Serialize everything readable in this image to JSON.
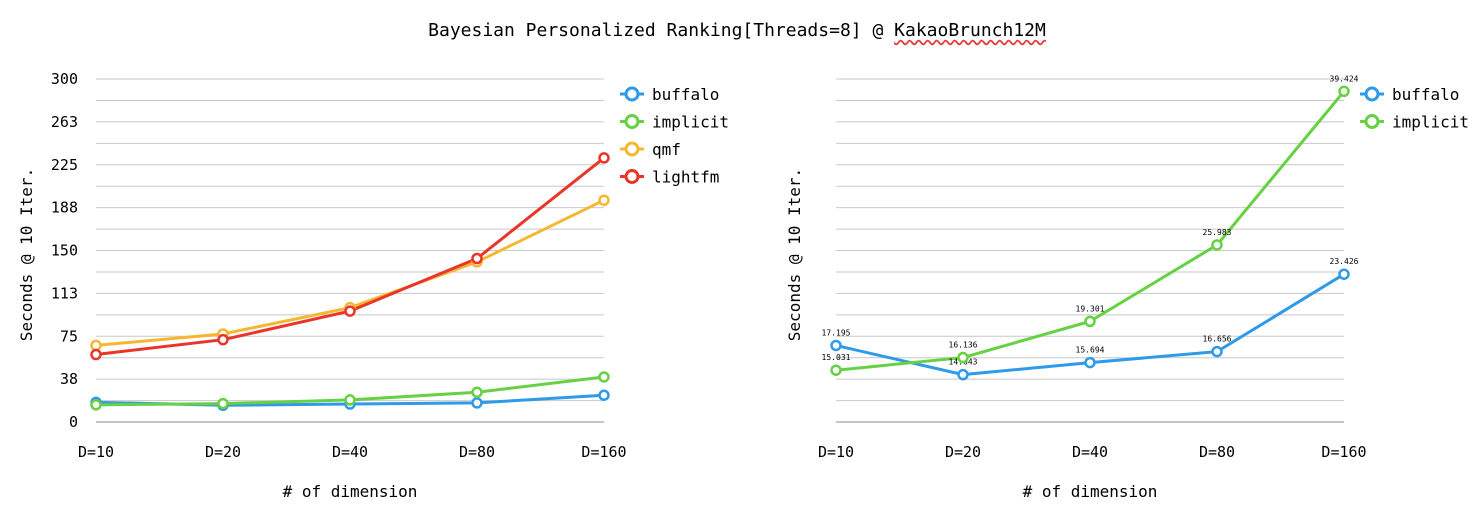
{
  "title_main": "Bayesian Personalized Ranking[Threads=8] @ ",
  "title_dataset": "KakaoBrunch12M",
  "chart_data": [
    {
      "type": "line",
      "title": "",
      "xlabel": "# of dimension",
      "ylabel": "Seconds @ 10 Iter.",
      "categories": [
        "D=10",
        "D=20",
        "D=40",
        "D=80",
        "D=160"
      ],
      "ylim": [
        0,
        300
      ],
      "yticks": [
        "0",
        "38",
        "75",
        "113",
        "150",
        "188",
        "225",
        "263",
        "300"
      ],
      "grid": true,
      "legend": "top-right",
      "series": [
        {
          "name": "buffalo",
          "color": "#2f9ae8",
          "values": [
            17.2,
            14.6,
            15.7,
            16.7,
            23.4
          ]
        },
        {
          "name": "implicit",
          "color": "#66d142",
          "values": [
            15.0,
            16.1,
            19.3,
            26.0,
            39.4
          ]
        },
        {
          "name": "qmf",
          "color": "#f5b731",
          "values": [
            67,
            77,
            100,
            140,
            194
          ]
        },
        {
          "name": "lightfm",
          "color": "#e8362a",
          "values": [
            59,
            72,
            97,
            143,
            231
          ]
        }
      ]
    },
    {
      "type": "line",
      "title": "",
      "xlabel": "# of dimension",
      "ylabel": "Seconds @ 10 Iter.",
      "categories": [
        "D=10",
        "D=20",
        "D=40",
        "D=80",
        "D=160"
      ],
      "ylim": [
        10.5,
        40.5
      ],
      "grid": true,
      "legend": "top-right",
      "series": [
        {
          "name": "buffalo",
          "color": "#2f9ae8",
          "values": [
            17.195,
            14.643,
            15.694,
            16.656,
            23.426
          ],
          "labels": [
            "17.195",
            "14.643",
            "15.694",
            "16.656",
            "23.426"
          ]
        },
        {
          "name": "implicit",
          "color": "#66d142",
          "values": [
            15.031,
            16.136,
            19.301,
            25.983,
            39.424
          ],
          "labels": [
            "15.031",
            "16.136",
            "19.301",
            "25.983",
            "39.424"
          ]
        }
      ]
    }
  ]
}
